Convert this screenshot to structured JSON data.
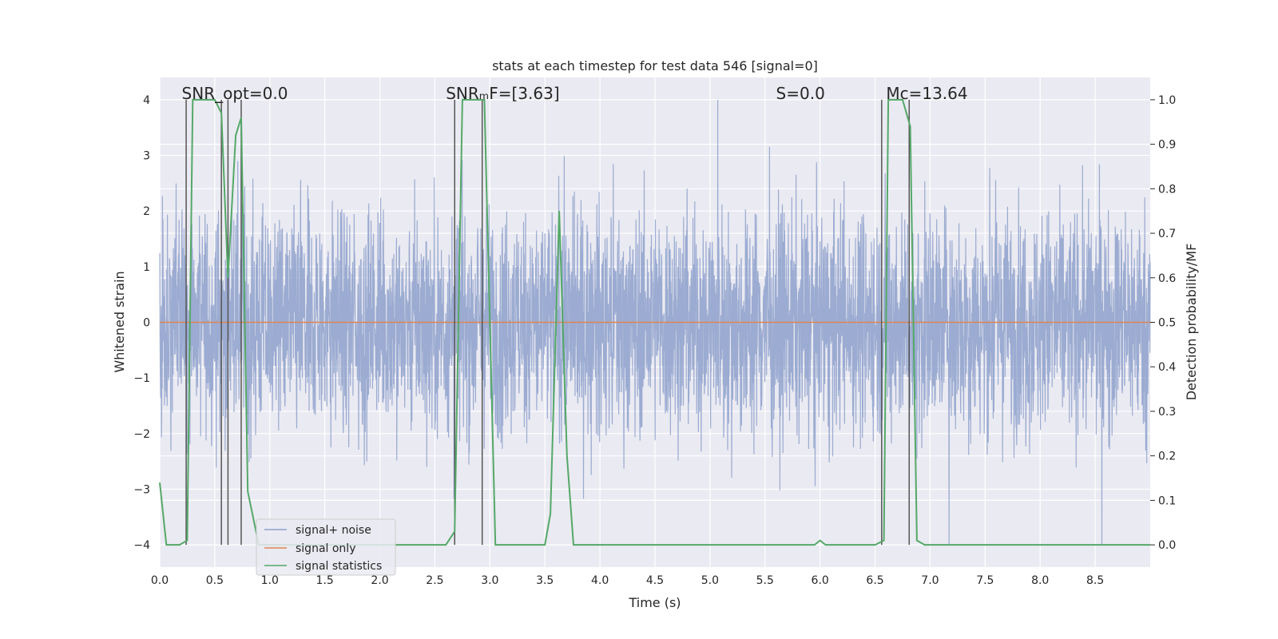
{
  "chart_data": {
    "type": "line",
    "title": "stats at each timestep for test data 546 [signal=0]",
    "xlabel": "Time (s)",
    "ylabel_left": "Whitened strain",
    "ylabel_right": "Detection probability/MF",
    "xlim": [
      0.0,
      9.0
    ],
    "ylim_left": [
      -4.4,
      4.4
    ],
    "ylim_right": [
      -0.05,
      1.05
    ],
    "x_ticks": [
      0.0,
      0.5,
      1.0,
      1.5,
      2.0,
      2.5,
      3.0,
      3.5,
      4.0,
      4.5,
      5.0,
      5.5,
      6.0,
      6.5,
      7.0,
      7.5,
      8.0,
      8.5
    ],
    "x_tick_labels": [
      "0.0",
      "0.5",
      "1.0",
      "1.5",
      "2.0",
      "2.5",
      "3.0",
      "3.5",
      "4.0",
      "4.5",
      "5.0",
      "5.5",
      "6.0",
      "6.5",
      "7.0",
      "7.5",
      "8.0",
      "8.5"
    ],
    "y_left_ticks": [
      4,
      3,
      2,
      1,
      0,
      -1,
      -2,
      -3,
      -4
    ],
    "y_left_tick_labels": [
      "4",
      "3",
      "2",
      "1",
      "0",
      "−1",
      "−2",
      "−3",
      "−4"
    ],
    "y_right_ticks": [
      1.0,
      0.9,
      0.8,
      0.7,
      0.6,
      0.5,
      0.4,
      0.3,
      0.2,
      0.1,
      0.0
    ],
    "y_right_tick_labels": [
      "1.0",
      "0.9",
      "0.8",
      "0.7",
      "0.6",
      "0.5",
      "0.4",
      "0.3",
      "0.2",
      "0.1",
      "0.0"
    ],
    "annotations": [
      {
        "text": "SNR_opt=0.0",
        "x": 0.2
      },
      {
        "text": "SNRₘF=[3.63]",
        "x": 2.6
      },
      {
        "text": "S=0.0",
        "x": 5.6
      },
      {
        "text": "Mᴄ=13.64",
        "x": 6.6
      }
    ],
    "legend": {
      "placement": "lower-left",
      "entries": [
        {
          "label": "signal+ noise",
          "color": "#8da0cb"
        },
        {
          "label": "signal only",
          "color": "#dd8452"
        },
        {
          "label": "signal statistics",
          "color": "#55a868"
        }
      ]
    },
    "series": [
      {
        "name": "signal+ noise",
        "axis": "left",
        "color": "#8da0cb",
        "kind": "noise",
        "amplitude_sigma": 1.0,
        "peak_range": [
          -4.0,
          4.0
        ],
        "samples": 4000
      },
      {
        "name": "signal only",
        "axis": "left",
        "color": "#dd8452",
        "x": [
          0.0,
          9.0
        ],
        "y": [
          0.0,
          0.0
        ]
      },
      {
        "name": "signal statistics",
        "axis": "right",
        "color": "#55a868",
        "x": [
          0.0,
          0.06,
          0.18,
          0.25,
          0.3,
          0.5,
          0.56,
          0.62,
          0.69,
          0.74,
          0.8,
          0.9,
          2.6,
          2.68,
          2.75,
          2.95,
          3.05,
          3.5,
          3.55,
          3.63,
          3.7,
          3.76,
          5.95,
          6.0,
          6.05,
          6.5,
          6.58,
          6.62,
          6.75,
          6.82,
          6.88,
          6.95,
          9.0
        ],
        "y": [
          0.14,
          0.0,
          0.0,
          0.01,
          1.0,
          1.0,
          0.97,
          0.6,
          0.92,
          0.96,
          0.12,
          0.0,
          0.0,
          0.03,
          1.0,
          1.0,
          0.0,
          0.0,
          0.07,
          0.75,
          0.2,
          0.0,
          0.0,
          0.01,
          0.0,
          0.0,
          0.01,
          1.0,
          1.0,
          0.94,
          0.01,
          0.0,
          0.0
        ]
      }
    ],
    "vertical_markers": [
      {
        "x": 0.24,
        "from_right": 0.0,
        "to_right": 1.0
      },
      {
        "x": 0.56,
        "from_right": 0.0,
        "to_right": 1.0
      },
      {
        "x": 0.62,
        "from_right": 0.0,
        "to_right": 1.0
      },
      {
        "x": 0.74,
        "from_right": 0.0,
        "to_right": 1.0
      },
      {
        "x": 2.68,
        "from_right": 0.0,
        "to_right": 1.0
      },
      {
        "x": 2.93,
        "from_right": 0.0,
        "to_right": 1.0
      },
      {
        "x": 6.56,
        "from_right": 0.0,
        "to_right": 1.0
      },
      {
        "x": 6.81,
        "from_right": 0.0,
        "to_right": 1.0
      }
    ]
  }
}
